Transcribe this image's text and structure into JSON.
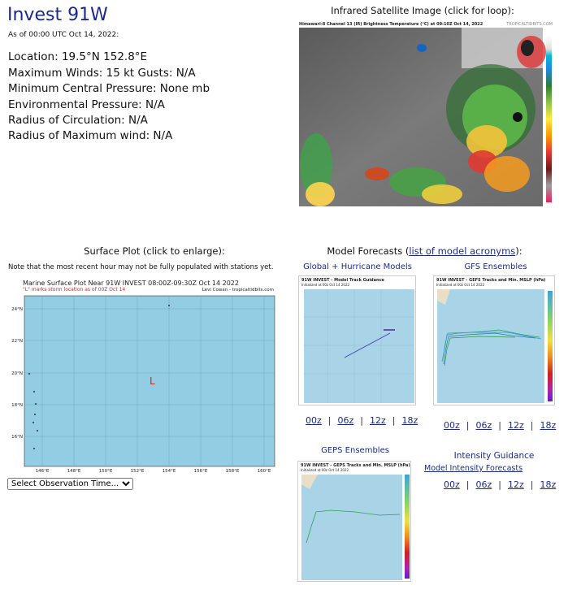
{
  "storm": {
    "title": "Invest 91W",
    "as_of": "As of 00:00 UTC Oct 14, 2022:",
    "location": "Location: 19.5°N 152.8°E",
    "winds": "Maximum Winds: 15 kt  Gusts: N/A",
    "pressure": "Minimum Central Pressure: None mb",
    "env_pressure": "Environmental Pressure: N/A",
    "radius_circ": "Radius of Circulation: N/A",
    "radius_max_wind": "Radius of Maximum wind: N/A"
  },
  "satellite": {
    "title": "Infrared Satellite Image (click for loop):",
    "caption": "Himawari-8 Channel 13 (IR) Brightness Temperature (°C) at 09:10Z Oct 14, 2022",
    "credit": "TROPICALTIDBITS.COM"
  },
  "surface": {
    "title": "Surface Plot (click to enlarge):",
    "note": "Note that the most recent hour may not be fully populated with stations yet.",
    "plot_title": "Marine Surface Plot Near 91W INVEST 08:00Z-09:30Z Oct 14 2022",
    "plot_subtitle": "\"L\" marks storm location as of 00Z Oct 14",
    "credit": "Levi Cowan - tropicaltidbits.com",
    "storm_marker": "L",
    "lat_labels": [
      "24°N",
      "22°N",
      "20°N",
      "18°N",
      "16°N"
    ],
    "lon_labels": [
      "146°E",
      "148°E",
      "150°E",
      "152°E",
      "154°E",
      "156°E",
      "158°E",
      "160°E"
    ],
    "select_label": "Select Observation Time...",
    "colors": {
      "ocean": "#93cde3",
      "grid": "#6fa7bd",
      "marker": "#d22222"
    }
  },
  "models": {
    "title_prefix": "Model Forecasts (",
    "acronyms_link": "list of model acronyms",
    "title_suffix": "):",
    "global_title": "Global + Hurricane Models",
    "global_plot_title": "91W INVEST - Model Track Guidance",
    "global_plot_sub": "Initialized at 00z Oct 14 2022",
    "gfs_title": "GFS Ensembles",
    "gfs_plot_title": "91W INVEST - GEFS Tracks and Min. MSLP (hPa)",
    "gfs_plot_sub": "Initialized at 00z Oct 14 2022",
    "geps_title": "GEPS Ensembles",
    "geps_plot_title": "91W INVEST - GEPS Tracks and Min. MSLP (hPa)",
    "geps_plot_sub": "Initialized at 00z Oct 14 2022",
    "intensity_title": "Intensity Guidance",
    "intensity_link": "Model Intensity Forecasts",
    "runs": [
      "00z",
      "06z",
      "12z",
      "18z"
    ],
    "separator": "|"
  }
}
